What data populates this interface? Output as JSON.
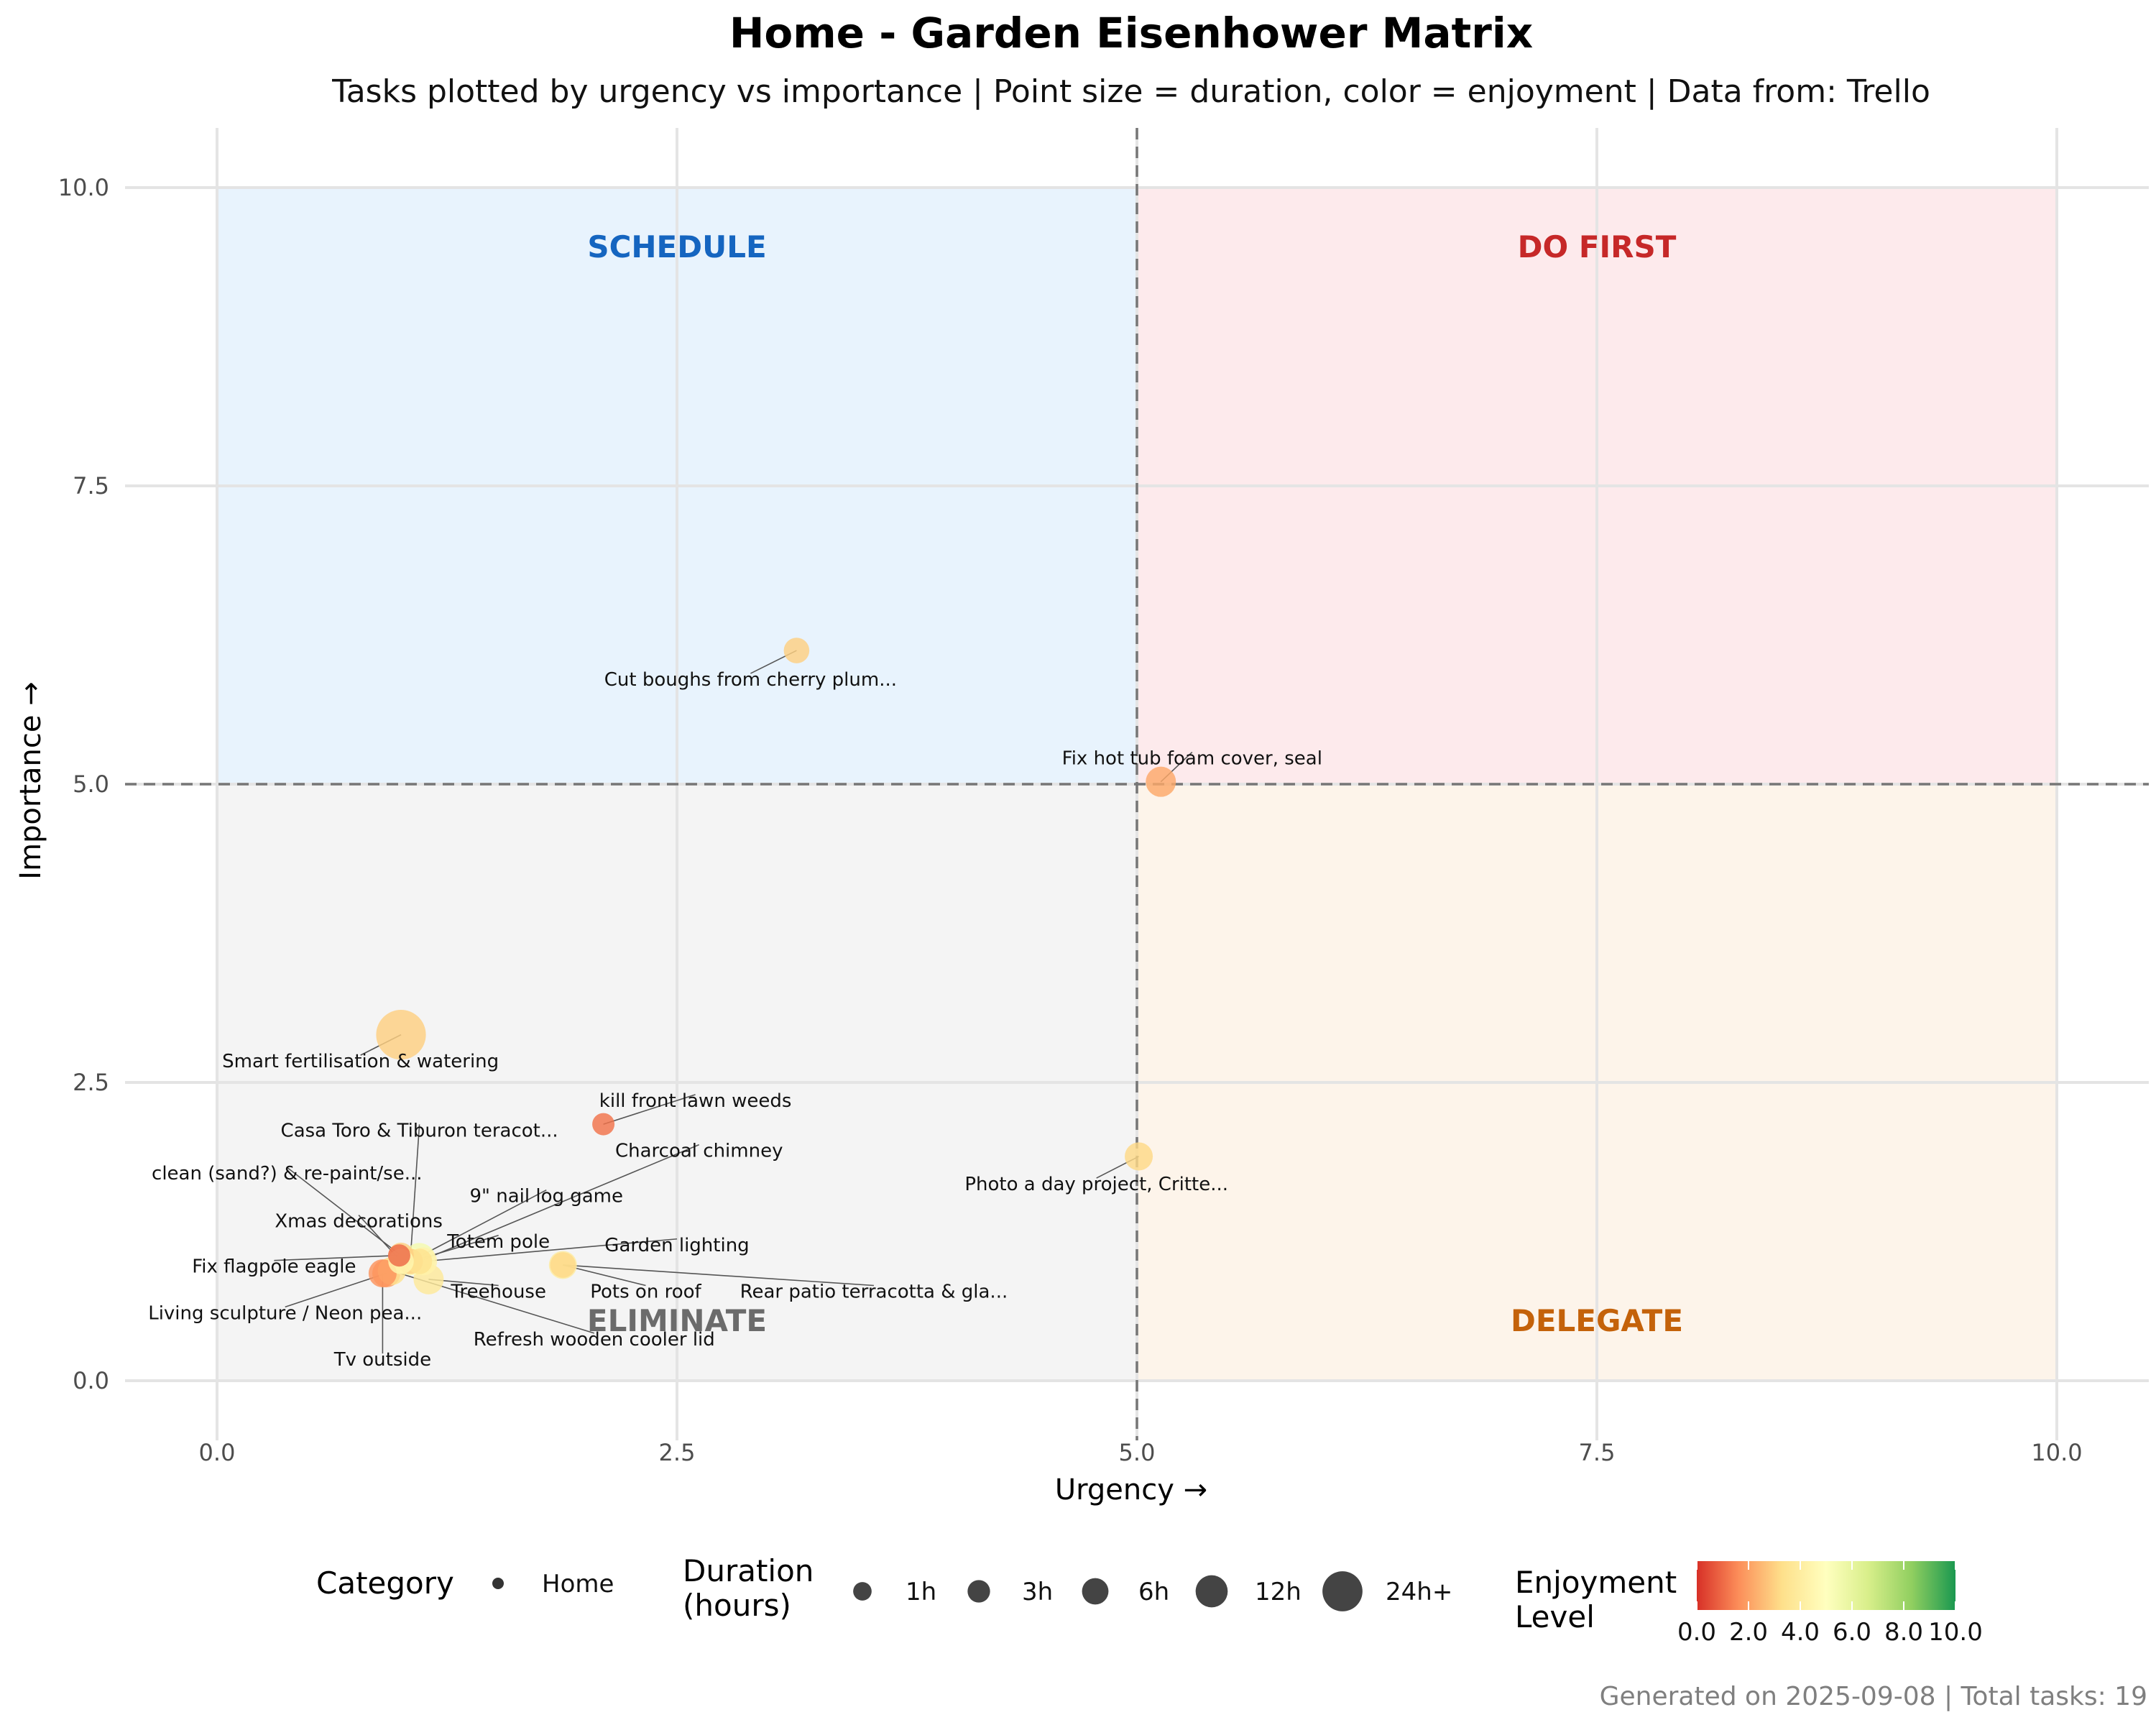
{
  "chart_data": {
    "type": "scatter",
    "title": "Home - Garden Eisenhower Matrix",
    "subtitle": "Tasks plotted by urgency vs importance | Point size = duration, color = enjoyment | Data from: Trello",
    "xlabel": "Urgency →",
    "ylabel": "Importance →",
    "xlim": [
      -0.5,
      10.5
    ],
    "ylim": [
      -0.5,
      10.5
    ],
    "x_ticks": [
      "0.0",
      "2.5",
      "5.0",
      "7.5",
      "10.0"
    ],
    "y_ticks": [
      "0.0",
      "2.5",
      "5.0",
      "7.5",
      "10.0"
    ],
    "x_tick_values": [
      0,
      2.5,
      5,
      7.5,
      10
    ],
    "y_tick_values": [
      0,
      2.5,
      5,
      7.5,
      10
    ],
    "grid": true,
    "thresholds": {
      "x": 5,
      "y": 5
    },
    "quadrants": [
      {
        "label": "SCHEDULE",
        "x": 2.5,
        "y": 9.5,
        "x_range": [
          0,
          5
        ],
        "y_range": [
          5,
          10
        ],
        "fill": "#e8f3fd",
        "text_color": "#1565c0"
      },
      {
        "label": "DO FIRST",
        "x": 7.5,
        "y": 9.5,
        "x_range": [
          5,
          10
        ],
        "y_range": [
          5,
          10
        ],
        "fill": "#fdeaec",
        "text_color": "#c62828"
      },
      {
        "label": "ELIMINATE",
        "x": 2.5,
        "y": 0.5,
        "x_range": [
          0,
          5
        ],
        "y_range": [
          0,
          5
        ],
        "fill": "#f4f4f4",
        "text_color": "#6b6b6b"
      },
      {
        "label": "DELEGATE",
        "x": 7.5,
        "y": 0.5,
        "x_range": [
          5,
          10
        ],
        "y_range": [
          0,
          5
        ],
        "fill": "#fdf4ea",
        "text_color": "#c4620a"
      }
    ],
    "points": [
      {
        "label": "Cut boughs from cherry plum...",
        "x": 3.15,
        "y": 6.12,
        "duration_h": 2,
        "enjoyment": 3.0,
        "lx": 2.9,
        "ly": 5.88
      },
      {
        "label": "Fix hot tub foam cover, seal",
        "x": 5.13,
        "y": 5.02,
        "duration_h": 4,
        "enjoyment": 2.2,
        "lx": 5.3,
        "ly": 5.22
      },
      {
        "label": "Smart fertilisation & watering",
        "x": 1.0,
        "y": 2.9,
        "duration_h": 20,
        "enjoyment": 3.0,
        "lx": 0.78,
        "ly": 2.68
      },
      {
        "label": "kill front lawn weeds",
        "x": 2.1,
        "y": 2.15,
        "duration_h": 1,
        "enjoyment": 1.2,
        "lx": 2.6,
        "ly": 2.35
      },
      {
        "label": "Photo a day project, Critte...",
        "x": 5.01,
        "y": 1.88,
        "duration_h": 3,
        "enjoyment": 3.2,
        "lx": 4.78,
        "ly": 1.65
      },
      {
        "label": "Casa Toro & Tiburon teracot...",
        "x": 1.05,
        "y": 1.0,
        "duration_h": 2,
        "enjoyment": 3.0,
        "lx": 1.1,
        "ly": 2.1
      },
      {
        "label": "Charcoal chimney",
        "x": 1.1,
        "y": 1.0,
        "duration_h": 2,
        "enjoyment": 3.5,
        "lx": 2.62,
        "ly": 1.93
      },
      {
        "label": "clean (sand?) & re-paint/se...",
        "x": 1.0,
        "y": 1.05,
        "duration_h": 2,
        "enjoyment": 3.0,
        "lx": 0.38,
        "ly": 1.74
      },
      {
        "label": "9\" nail log game",
        "x": 1.05,
        "y": 1.0,
        "duration_h": 3,
        "enjoyment": 5.2,
        "lx": 1.79,
        "ly": 1.55
      },
      {
        "label": "Xmas decorations",
        "x": 1.0,
        "y": 1.0,
        "duration_h": 2,
        "enjoyment": 4.5,
        "lx": 0.77,
        "ly": 1.34
      },
      {
        "label": "Totem pole",
        "x": 1.1,
        "y": 1.02,
        "duration_h": 5,
        "enjoyment": 5.5,
        "lx": 1.53,
        "ly": 1.17
      },
      {
        "label": "Garden lighting",
        "x": 1.12,
        "y": 1.0,
        "duration_h": 3,
        "enjoyment": 4.3,
        "lx": 2.5,
        "ly": 1.14
      },
      {
        "label": "Fix flagpole eagle",
        "x": 0.99,
        "y": 1.05,
        "duration_h": 1,
        "enjoyment": 1.0,
        "lx": 0.31,
        "ly": 0.96
      },
      {
        "label": "Pots on roof",
        "x": 1.88,
        "y": 0.97,
        "duration_h": 3,
        "enjoyment": 4.0,
        "lx": 2.33,
        "ly": 0.75
      },
      {
        "label": "Treehouse",
        "x": 1.15,
        "y": 0.85,
        "duration_h": 4,
        "enjoyment": 3.8,
        "lx": 1.53,
        "ly": 0.75
      },
      {
        "label": "Rear patio terracotta & gla...",
        "x": 1.88,
        "y": 0.97,
        "duration_h": 2,
        "enjoyment": 3.2,
        "lx": 3.57,
        "ly": 0.75
      },
      {
        "label": "Living sculpture / Neon pea...",
        "x": 0.92,
        "y": 0.9,
        "duration_h": 3,
        "enjoyment": 2.0,
        "lx": 0.37,
        "ly": 0.57
      },
      {
        "label": "Refresh wooden cooler lid",
        "x": 0.95,
        "y": 0.92,
        "duration_h": 3,
        "enjoyment": 3.5,
        "lx": 2.05,
        "ly": 0.35
      },
      {
        "label": "Tv outside",
        "x": 0.9,
        "y": 0.9,
        "duration_h": 3,
        "enjoyment": 1.8,
        "lx": 0.9,
        "ly": 0.18
      }
    ],
    "legend": {
      "placement": "bottom",
      "category_title": "Category",
      "category_items": [
        "Home"
      ],
      "duration_title": "Duration\n(hours)",
      "duration_items": [
        {
          "label": "1h",
          "hours": 1
        },
        {
          "label": "3h",
          "hours": 3
        },
        {
          "label": "6h",
          "hours": 6
        },
        {
          "label": "12h",
          "hours": 12
        },
        {
          "label": "24h+",
          "hours": 24
        }
      ],
      "enjoyment_title": "Enjoyment\nLevel",
      "enjoyment_ticks": [
        "0.0",
        "2.0",
        "4.0",
        "6.0",
        "8.0",
        "10.0"
      ],
      "enjoyment_range": [
        0,
        10
      ],
      "colors": [
        "#d73027",
        "#fc8d59",
        "#fee08b",
        "#ffffbf",
        "#d9ef8b",
        "#91cf60",
        "#1a9850"
      ]
    }
  },
  "footer": "Generated on 2025-09-08 | Total tasks: 19"
}
